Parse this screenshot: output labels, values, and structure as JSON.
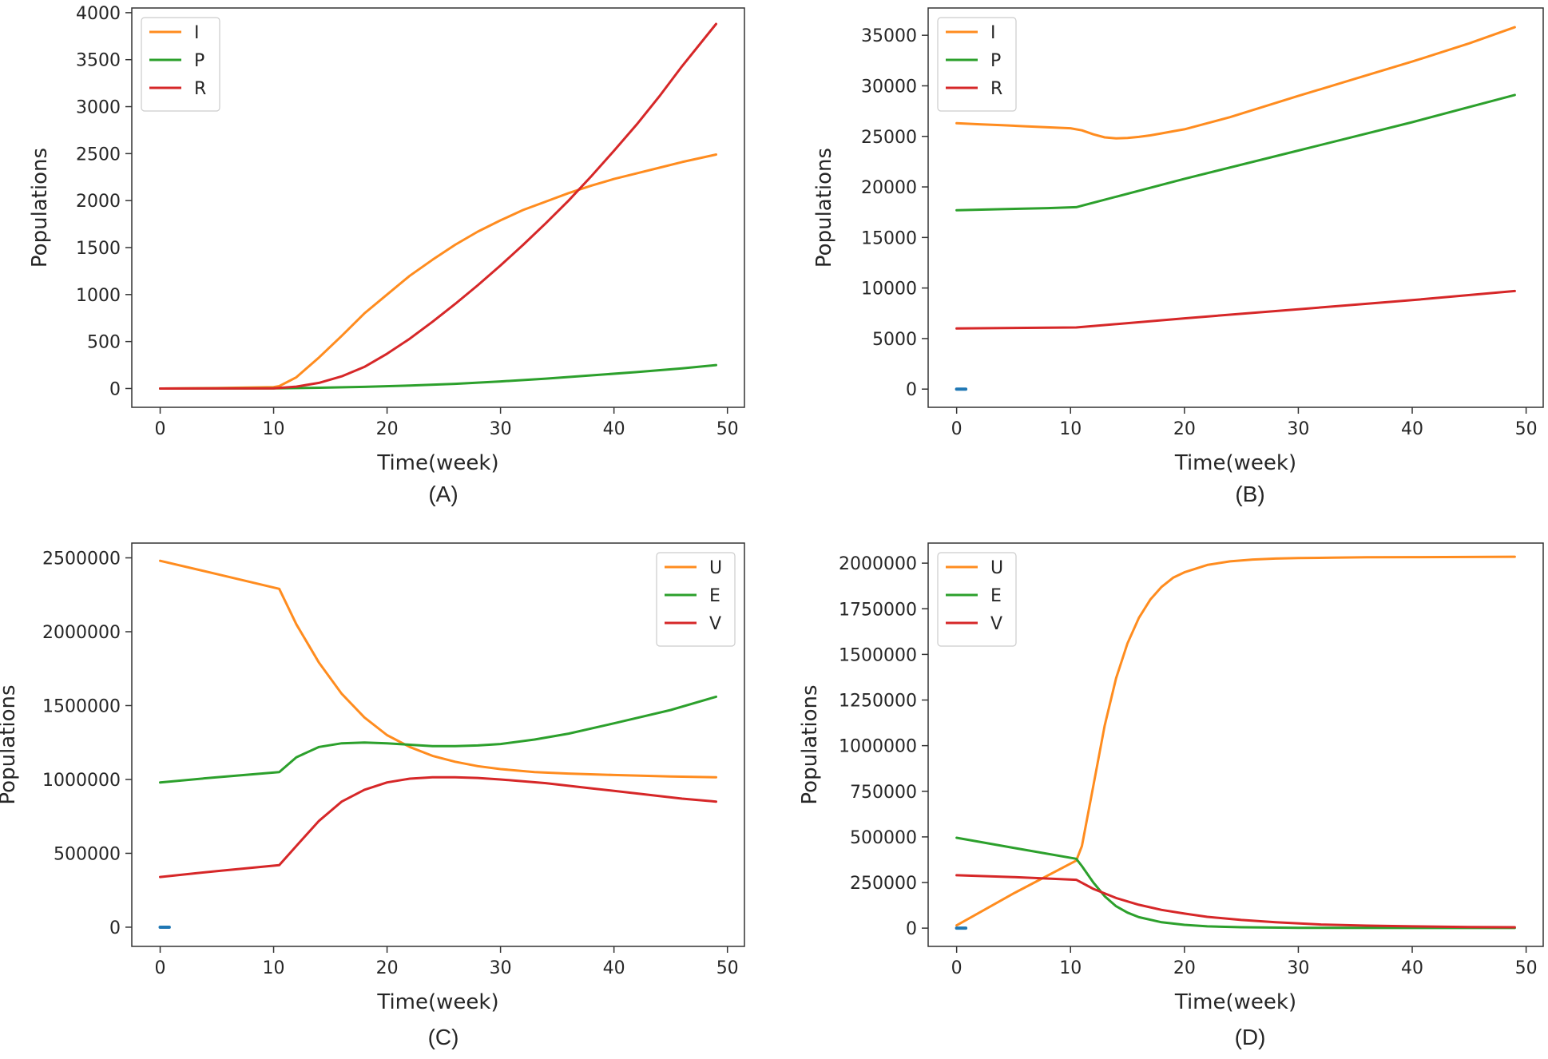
{
  "figure": {
    "panels": [
      "(A)",
      "(B)",
      "(C)",
      "(D)"
    ]
  },
  "colors": {
    "orange": "#ff8c1f",
    "green": "#2ca02c",
    "red": "#d62728",
    "blue": "#1f77b4",
    "frame": "#333333"
  },
  "chart_data": [
    {
      "type": "line",
      "panel": "(A)",
      "title": "",
      "xlabel": "Time(week)",
      "ylabel": "Populations",
      "xlim": [
        -2.5,
        51.5
      ],
      "ylim": [
        -200,
        4050
      ],
      "xticks": [
        0,
        10,
        20,
        30,
        40,
        50
      ],
      "yticks": [
        0,
        500,
        1000,
        1500,
        2000,
        2500,
        3000,
        3500,
        4000
      ],
      "legend_position": "top-left",
      "grid": false,
      "series": [
        {
          "name": "I",
          "color": "orange",
          "x": [
            0,
            5,
            10,
            10.5,
            12,
            14,
            16,
            18,
            20,
            22,
            24,
            26,
            28,
            30,
            32,
            34,
            36,
            38,
            40,
            42,
            44,
            46,
            49
          ],
          "y": [
            0,
            5,
            15,
            25,
            120,
            330,
            560,
            800,
            1000,
            1200,
            1370,
            1530,
            1670,
            1790,
            1900,
            1990,
            2080,
            2160,
            2230,
            2290,
            2350,
            2410,
            2490
          ]
        },
        {
          "name": "P",
          "color": "green",
          "x": [
            0,
            10,
            14,
            18,
            22,
            26,
            30,
            34,
            38,
            42,
            46,
            49
          ],
          "y": [
            0,
            2,
            8,
            18,
            32,
            50,
            75,
            105,
            140,
            175,
            215,
            250
          ]
        },
        {
          "name": "R",
          "color": "red",
          "x": [
            0,
            10,
            12,
            14,
            16,
            18,
            20,
            22,
            24,
            26,
            28,
            30,
            32,
            34,
            36,
            38,
            40,
            42,
            44,
            46,
            49
          ],
          "y": [
            0,
            2,
            20,
            60,
            130,
            230,
            370,
            530,
            710,
            900,
            1100,
            1310,
            1530,
            1760,
            2000,
            2260,
            2530,
            2810,
            3110,
            3430,
            3880
          ]
        }
      ]
    },
    {
      "type": "line",
      "panel": "(B)",
      "title": "",
      "xlabel": "Time(week)",
      "ylabel": "Populations",
      "xlim": [
        -2.5,
        51.5
      ],
      "ylim": [
        -1800,
        37700
      ],
      "xticks": [
        0,
        10,
        20,
        30,
        40,
        50
      ],
      "yticks": [
        0,
        5000,
        10000,
        15000,
        20000,
        25000,
        30000,
        35000
      ],
      "legend_position": "top-left",
      "grid": false,
      "series": [
        {
          "name": "I",
          "color": "orange",
          "x": [
            0,
            2,
            4,
            6,
            8,
            10,
            11,
            12,
            13,
            14,
            15,
            16,
            17,
            18,
            19,
            20,
            22,
            24,
            26,
            30,
            35,
            40,
            45,
            49
          ],
          "y": [
            26300,
            26200,
            26100,
            26000,
            25900,
            25800,
            25600,
            25200,
            24900,
            24800,
            24850,
            24950,
            25100,
            25300,
            25500,
            25700,
            26300,
            26900,
            27600,
            29000,
            30700,
            32400,
            34200,
            35800
          ]
        },
        {
          "name": "P",
          "color": "green",
          "x": [
            0,
            4,
            8,
            10.5,
            20,
            30,
            40,
            49
          ],
          "y": [
            17700,
            17800,
            17900,
            18000,
            20800,
            23600,
            26400,
            29100
          ]
        },
        {
          "name": "R",
          "color": "red",
          "x": [
            0,
            10.5,
            20,
            30,
            40,
            49
          ],
          "y": [
            6000,
            6100,
            7000,
            7900,
            8800,
            9700
          ]
        },
        {
          "name": "",
          "color": "blue",
          "x": [
            0,
            0.8
          ],
          "y": [
            0,
            0
          ]
        }
      ]
    },
    {
      "type": "line",
      "panel": "(C)",
      "title": "",
      "xlabel": "Time(week)",
      "ylabel": "Populations",
      "xlim": [
        -2.5,
        51.5
      ],
      "ylim": [
        -130000,
        2600000
      ],
      "xticks": [
        0,
        10,
        20,
        30,
        40,
        50
      ],
      "yticks": [
        0,
        500000,
        1000000,
        1500000,
        2000000,
        2500000
      ],
      "legend_position": "top-right",
      "grid": false,
      "series": [
        {
          "name": "U",
          "color": "orange",
          "x": [
            0,
            5,
            10.5,
            12,
            14,
            16,
            18,
            20,
            22,
            24,
            26,
            28,
            30,
            33,
            36,
            40,
            45,
            49
          ],
          "y": [
            2480000,
            2390000,
            2290000,
            2050000,
            1790000,
            1580000,
            1420000,
            1300000,
            1220000,
            1160000,
            1120000,
            1090000,
            1070000,
            1050000,
            1040000,
            1030000,
            1020000,
            1015000
          ]
        },
        {
          "name": "E",
          "color": "green",
          "x": [
            0,
            5,
            10.5,
            12,
            14,
            16,
            18,
            20,
            22,
            24,
            26,
            28,
            30,
            33,
            36,
            40,
            45,
            49
          ],
          "y": [
            980000,
            1015000,
            1050000,
            1150000,
            1220000,
            1245000,
            1250000,
            1245000,
            1235000,
            1225000,
            1225000,
            1230000,
            1240000,
            1270000,
            1310000,
            1380000,
            1470000,
            1560000
          ]
        },
        {
          "name": "V",
          "color": "red",
          "x": [
            0,
            5,
            10.5,
            12,
            14,
            16,
            18,
            20,
            22,
            24,
            26,
            28,
            30,
            34,
            38,
            42,
            46,
            49
          ],
          "y": [
            340000,
            380000,
            420000,
            550000,
            720000,
            850000,
            930000,
            980000,
            1005000,
            1015000,
            1015000,
            1010000,
            1000000,
            975000,
            940000,
            905000,
            870000,
            850000
          ]
        },
        {
          "name": "",
          "color": "blue",
          "x": [
            0,
            0.8
          ],
          "y": [
            0,
            0
          ]
        }
      ]
    },
    {
      "type": "line",
      "panel": "(D)",
      "title": "",
      "xlabel": "Time(week)",
      "ylabel": "Populations",
      "xlim": [
        -2.5,
        51.5
      ],
      "ylim": [
        -100000,
        2110000
      ],
      "xticks": [
        0,
        10,
        20,
        30,
        40,
        50
      ],
      "yticks": [
        0,
        250000,
        500000,
        750000,
        1000000,
        1250000,
        1500000,
        1750000,
        2000000
      ],
      "legend_position": "top-left",
      "grid": false,
      "series": [
        {
          "name": "U",
          "color": "orange",
          "x": [
            0,
            5,
            10.5,
            11,
            12,
            13,
            14,
            15,
            16,
            17,
            18,
            19,
            20,
            22,
            24,
            26,
            28,
            30,
            33,
            36,
            40,
            45,
            49
          ],
          "y": [
            15000,
            190000,
            370000,
            450000,
            780000,
            1110000,
            1370000,
            1560000,
            1700000,
            1800000,
            1870000,
            1920000,
            1950000,
            1990000,
            2010000,
            2020000,
            2025000,
            2028000,
            2030000,
            2032000,
            2033000,
            2034000,
            2035000
          ]
        },
        {
          "name": "E",
          "color": "green",
          "x": [
            0,
            5,
            10.5,
            11,
            12,
            13,
            14,
            15,
            16,
            18,
            20,
            22,
            25,
            30,
            40,
            49
          ],
          "y": [
            495000,
            440000,
            380000,
            340000,
            250000,
            175000,
            120000,
            85000,
            60000,
            32000,
            18000,
            10000,
            5000,
            2000,
            1000,
            1000
          ]
        },
        {
          "name": "V",
          "color": "red",
          "x": [
            0,
            5,
            10.5,
            12,
            14,
            16,
            18,
            20,
            22,
            25,
            28,
            32,
            36,
            40,
            45,
            49
          ],
          "y": [
            290000,
            280000,
            265000,
            215000,
            165000,
            128000,
            100000,
            80000,
            62000,
            45000,
            32000,
            20000,
            14000,
            10000,
            6000,
            5000
          ]
        },
        {
          "name": "",
          "color": "blue",
          "x": [
            0,
            0.8
          ],
          "y": [
            0,
            0
          ]
        }
      ]
    }
  ]
}
